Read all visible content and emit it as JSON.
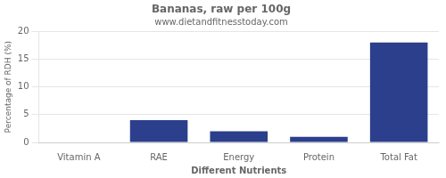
{
  "chart_data": {
    "type": "bar",
    "title": "Bananas, raw per 100g",
    "subtitle": "www.dietandfitnesstoday.com",
    "categories": [
      "Vitamin A",
      "RAE",
      "Energy",
      "Protein",
      "Total Fat"
    ],
    "values": [
      0,
      4,
      2,
      1,
      18
    ],
    "color": "#2b3f8c",
    "xlabel": "Different Nutrients",
    "ylabel": "Percentage of RDH (%)",
    "ylim": [
      0,
      20
    ],
    "yticks": [
      0,
      5,
      10,
      15,
      20
    ],
    "grid": true
  }
}
